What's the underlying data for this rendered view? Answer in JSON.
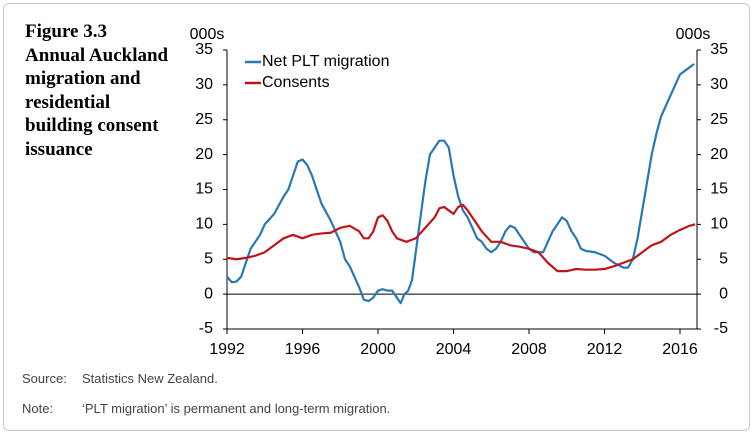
{
  "figure_label": "Figure 3.3",
  "chart_data": {
    "type": "line",
    "title": "Annual Auckland migration and residential building consent issuance",
    "y_unit": "000s",
    "y2_unit": "000s",
    "xlim": [
      1992,
      2016.9
    ],
    "xticks": [
      1992,
      1996,
      2000,
      2004,
      2008,
      2012,
      2016
    ],
    "ylim": [
      -5,
      35
    ],
    "yticks": [
      -5,
      0,
      5,
      10,
      15,
      20,
      25,
      30,
      35
    ],
    "y2lim": [
      -5,
      35
    ],
    "y2ticks": [
      -5,
      0,
      5,
      10,
      15,
      20,
      25,
      30,
      35
    ],
    "zero_line": true,
    "legend": "upper left",
    "series": [
      {
        "name": "Net PLT migration",
        "color": "#2878b5",
        "x": [
          1992,
          1992.25,
          1992.5,
          1992.75,
          1993,
          1993.25,
          1993.5,
          1993.75,
          1994,
          1994.5,
          1995,
          1995.25,
          1995.5,
          1995.75,
          1996,
          1996.25,
          1996.5,
          1996.75,
          1997,
          1997.5,
          1998,
          1998.25,
          1998.5,
          1998.75,
          1999,
          1999.25,
          1999.5,
          1999.75,
          2000,
          2000.25,
          2000.5,
          2000.75,
          2001,
          2001.2,
          2001.4,
          2001.6,
          2001.8,
          2002,
          2002.25,
          2002.5,
          2002.75,
          2003,
          2003.25,
          2003.5,
          2003.75,
          2004,
          2004.25,
          2004.5,
          2004.75,
          2005,
          2005.25,
          2005.5,
          2005.75,
          2006,
          2006.25,
          2006.5,
          2006.75,
          2007,
          2007.25,
          2007.5,
          2007.75,
          2008,
          2008.25,
          2008.5,
          2008.75,
          2009,
          2009.25,
          2009.5,
          2009.75,
          2010,
          2010.25,
          2010.5,
          2010.75,
          2011,
          2011.5,
          2012,
          2012.5,
          2013,
          2013.25,
          2013.5,
          2013.75,
          2014,
          2014.25,
          2014.5,
          2014.75,
          2015,
          2015.25,
          2015.5,
          2015.75,
          2016,
          2016.25,
          2016.5,
          2016.75
        ],
        "values": [
          2.5,
          1.7,
          1.8,
          2.5,
          4.5,
          6.5,
          7.5,
          8.5,
          10,
          11.5,
          14,
          15,
          17,
          19,
          19.3,
          18.5,
          17,
          15,
          13,
          10.5,
          7.5,
          5,
          4,
          2.5,
          1,
          -0.8,
          -1,
          -0.5,
          0.5,
          0.7,
          0.5,
          0.5,
          -0.5,
          -1.3,
          0,
          0.5,
          2,
          6,
          11,
          16,
          20,
          21,
          22,
          22,
          21,
          17,
          14,
          12,
          11,
          9.5,
          8,
          7.5,
          6.5,
          6,
          6.5,
          7.5,
          9,
          9.8,
          9.5,
          8.5,
          7.5,
          6.5,
          6,
          6,
          6,
          7.5,
          9,
          10,
          11,
          10.5,
          9,
          8,
          6.5,
          6.2,
          6,
          5.5,
          4.5,
          3.8,
          3.8,
          5,
          8,
          12,
          16,
          20,
          23,
          25.5,
          27,
          28.5,
          30,
          31.5,
          32,
          32.5,
          33
        ]
      },
      {
        "name": "Consents",
        "color": "#c0141c",
        "x": [
          1992,
          1992.5,
          1993,
          1993.5,
          1994,
          1994.5,
          1995,
          1995.5,
          1996,
          1996.5,
          1997,
          1997.5,
          1998,
          1998.5,
          1999,
          1999.25,
          1999.5,
          1999.75,
          2000,
          2000.25,
          2000.5,
          2000.75,
          2001,
          2001.5,
          2002,
          2002.5,
          2003,
          2003.25,
          2003.5,
          2003.75,
          2004,
          2004.25,
          2004.5,
          2004.75,
          2005,
          2005.5,
          2006,
          2006.5,
          2007,
          2007.5,
          2008,
          2008.5,
          2009,
          2009.5,
          2010,
          2010.5,
          2011,
          2011.5,
          2012,
          2012.5,
          2013,
          2013.5,
          2014,
          2014.5,
          2015,
          2015.5,
          2016,
          2016.5,
          2016.8
        ],
        "values": [
          5.2,
          5,
          5.2,
          5.5,
          6,
          7,
          8,
          8.5,
          8,
          8.5,
          8.7,
          8.8,
          9.5,
          9.8,
          9,
          8,
          8,
          9,
          11,
          11.3,
          10.5,
          9,
          8,
          7.5,
          8,
          9.5,
          11,
          12.3,
          12.5,
          12,
          11.5,
          12.5,
          12.8,
          12,
          11,
          9,
          7.5,
          7.5,
          7,
          6.8,
          6.5,
          6,
          4.5,
          3.3,
          3.3,
          3.6,
          3.5,
          3.5,
          3.6,
          4,
          4.5,
          5,
          6,
          7,
          7.5,
          8.5,
          9.2,
          9.8,
          10
        ]
      }
    ]
  },
  "footer": {
    "source_label": "Source:",
    "source": "Statistics New Zealand.",
    "note_label": "Note:",
    "note": "‘PLT migration’ is permanent and long-term migration."
  }
}
